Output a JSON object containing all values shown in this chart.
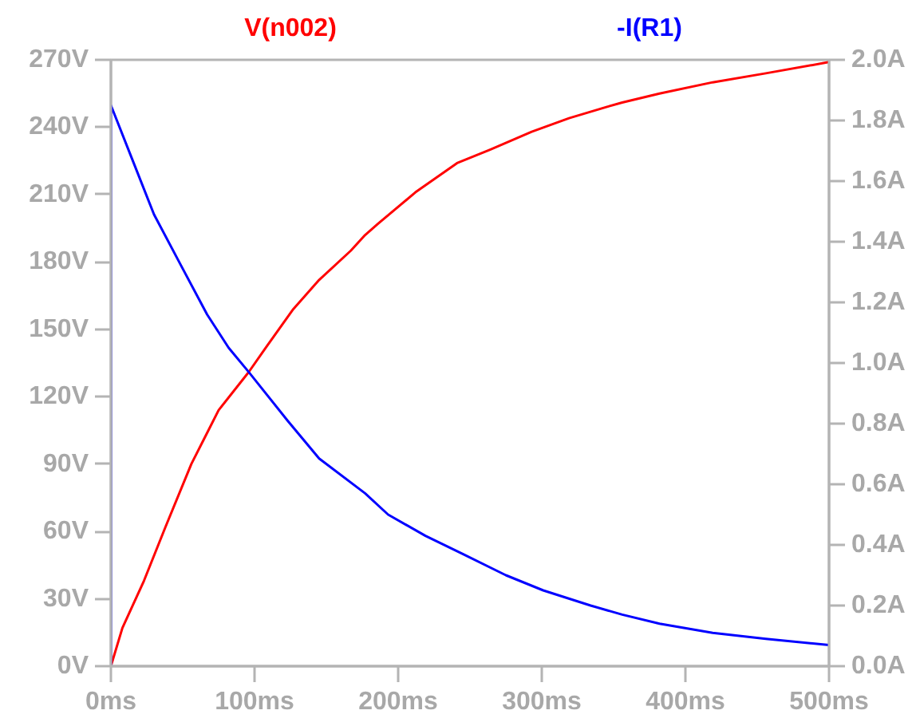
{
  "chart_data": {
    "type": "line",
    "grid": false,
    "xlim": [
      0,
      500
    ],
    "xticks": [
      {
        "value": 0,
        "label": "0ms"
      },
      {
        "value": 100,
        "label": "100ms"
      },
      {
        "value": 200,
        "label": "200ms"
      },
      {
        "value": 300,
        "label": "300ms"
      },
      {
        "value": 400,
        "label": "400ms"
      },
      {
        "value": 500,
        "label": "500ms"
      }
    ],
    "ylim": [
      0,
      270
    ],
    "yticks": [
      {
        "value": 0,
        "label": "0V"
      },
      {
        "value": 30,
        "label": "30V"
      },
      {
        "value": 60,
        "label": "60V"
      },
      {
        "value": 90,
        "label": "90V"
      },
      {
        "value": 120,
        "label": "120V"
      },
      {
        "value": 150,
        "label": "150V"
      },
      {
        "value": 180,
        "label": "180V"
      },
      {
        "value": 210,
        "label": "210V"
      },
      {
        "value": 240,
        "label": "240V"
      },
      {
        "value": 270,
        "label": "270V"
      }
    ],
    "y2lim": [
      0,
      2.0
    ],
    "y2ticks": [
      {
        "value": 0,
        "label": "0.0A"
      },
      {
        "value": 0.2,
        "label": "0.2A"
      },
      {
        "value": 0.4,
        "label": "0.4A"
      },
      {
        "value": 0.6,
        "label": "0.6A"
      },
      {
        "value": 0.8,
        "label": "0.8A"
      },
      {
        "value": 1.0,
        "label": "1.0A"
      },
      {
        "value": 1.2,
        "label": "1.2A"
      },
      {
        "value": 1.4,
        "label": "1.4A"
      },
      {
        "value": 1.6,
        "label": "1.6A"
      },
      {
        "value": 1.8,
        "label": "1.8A"
      },
      {
        "value": 2.0,
        "label": "2.0A"
      }
    ],
    "series": [
      {
        "name": "V(n002)",
        "color": "#ff0000",
        "x": [
          0,
          8,
          23,
          38,
          56,
          75,
          96,
          108,
          127,
          145,
          167,
          177,
          186,
          212,
          241,
          264,
          293,
          319,
          345,
          356,
          382,
          419,
          456,
          500
        ],
        "values": [
          0,
          17,
          38,
          62,
          90,
          114,
          131,
          142,
          159,
          172,
          185,
          192,
          197,
          211,
          224,
          230,
          238,
          244,
          249,
          251,
          255,
          260,
          264,
          269
        ]
      },
      {
        "name": "-I(R1)",
        "color": "#0000ff",
        "axis": "y2",
        "x": [
          0,
          0,
          15,
          30,
          49,
          67,
          82,
          96,
          123,
          145,
          177,
          193,
          219,
          245,
          275,
          301,
          334,
          356,
          382,
          419,
          456,
          500
        ],
        "values": [
          0,
          1.85,
          1.67,
          1.49,
          1.32,
          1.16,
          1.05,
          0.97,
          0.81,
          0.685,
          0.57,
          0.5,
          0.43,
          0.37,
          0.3,
          0.25,
          0.2,
          0.17,
          0.14,
          0.11,
          0.09,
          0.07
        ]
      }
    ]
  }
}
